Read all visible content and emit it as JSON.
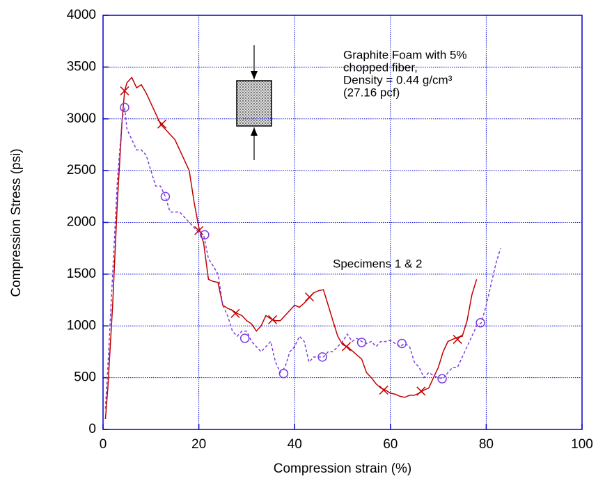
{
  "chart_data": {
    "type": "line",
    "x_label": "Compression strain (%)",
    "y_label": "Compression Stress (psi)",
    "xlim": [
      0,
      100
    ],
    "xticks": [
      0,
      20,
      40,
      60,
      80,
      100
    ],
    "ylim": [
      0,
      4000
    ],
    "yticks": [
      0,
      500,
      1000,
      1500,
      2000,
      2500,
      3000,
      3500,
      4000
    ],
    "grid": true,
    "annotations": [
      "Graphite Foam with 5%",
      "chopped fiber,",
      "Density = 0.44 g/cm³",
      "(27.16 pcf)",
      "Specimens 1 & 2"
    ],
    "series": [
      {
        "color": "#c00000",
        "dash": false,
        "x": [
          0.5,
          1,
          2,
          3,
          4,
          4.5,
          5,
          6,
          7,
          8,
          9,
          10,
          11,
          12,
          13,
          14,
          15,
          16,
          17,
          18,
          19,
          20,
          21,
          22,
          23,
          24,
          25,
          26,
          27,
          28,
          29,
          30,
          31,
          32,
          33,
          34,
          35,
          36,
          37,
          38,
          39,
          40,
          41,
          42,
          43,
          44,
          45,
          46,
          47,
          48,
          49,
          50,
          51,
          52,
          53,
          54,
          55,
          56,
          57,
          58,
          59,
          60,
          61,
          62,
          63,
          64,
          65,
          66,
          67,
          68,
          69,
          70,
          71,
          72,
          73,
          74,
          75,
          76,
          77,
          78
        ],
        "values": [
          100,
          400,
          1200,
          2200,
          3000,
          3270,
          3350,
          3400,
          3300,
          3330,
          3250,
          3150,
          3050,
          2950,
          2900,
          2850,
          2800,
          2700,
          2600,
          2500,
          2200,
          1950,
          1800,
          1450,
          1430,
          1420,
          1200,
          1170,
          1150,
          1120,
          1100,
          1050,
          1020,
          950,
          1000,
          1100,
          1070,
          1050,
          1050,
          1100,
          1150,
          1200,
          1180,
          1220,
          1270,
          1320,
          1340,
          1350,
          1200,
          1050,
          900,
          820,
          800,
          760,
          720,
          680,
          550,
          500,
          440,
          400,
          380,
          350,
          340,
          320,
          310,
          330,
          330,
          350,
          380,
          400,
          500,
          600,
          750,
          850,
          870,
          890,
          900,
          1050,
          1300,
          1450
        ]
      },
      {
        "color": "#7b3fe0",
        "dash": true,
        "x": [
          0.5,
          1,
          2,
          3,
          4,
          4.5,
          5,
          6,
          7,
          8,
          9,
          10,
          11,
          12,
          13,
          14,
          15,
          16,
          17,
          18,
          19,
          20,
          21,
          22,
          23,
          24,
          25,
          26,
          27,
          28,
          29,
          30,
          31,
          32,
          33,
          34,
          35,
          36,
          37,
          38,
          39,
          40,
          41,
          42,
          43,
          44,
          45,
          46,
          47,
          48,
          49,
          50,
          51,
          52,
          53,
          54,
          55,
          56,
          57,
          58,
          59,
          60,
          61,
          62,
          63,
          64,
          65,
          66,
          67,
          68,
          69,
          70,
          71,
          72,
          73,
          74,
          75,
          76,
          77,
          78,
          79,
          80,
          81,
          82,
          83
        ],
        "values": [
          200,
          600,
          1500,
          2400,
          3000,
          3110,
          2900,
          2800,
          2700,
          2700,
          2650,
          2500,
          2350,
          2350,
          2250,
          2100,
          2100,
          2100,
          2050,
          2000,
          1950,
          1900,
          1880,
          1650,
          1580,
          1500,
          1200,
          1100,
          950,
          900,
          950,
          950,
          850,
          800,
          750,
          800,
          850,
          650,
          550,
          600,
          750,
          800,
          900,
          850,
          650,
          700,
          700,
          700,
          750,
          750,
          800,
          850,
          920,
          850,
          880,
          850,
          830,
          850,
          800,
          850,
          850,
          860,
          830,
          800,
          830,
          800,
          650,
          600,
          500,
          550,
          520,
          500,
          490,
          550,
          600,
          600,
          700,
          800,
          900,
          1000,
          1030,
          1200,
          1400,
          1600,
          1750
        ]
      },
      {
        "color": "#c00000",
        "marker": "x",
        "x": [
          4.5,
          12.3,
          20,
          27.6,
          35.4,
          43.1,
          50.8,
          58.6,
          66.4,
          74
        ],
        "values": [
          3270,
          2950,
          1920,
          1120,
          1060,
          1280,
          800,
          380,
          370,
          870
        ]
      },
      {
        "color": "#7b3fe0",
        "marker": "circle",
        "x": [
          4.5,
          13,
          21.2,
          29.6,
          37.7,
          45.8,
          54,
          62.4,
          70.8,
          78.8
        ],
        "values": [
          3110,
          2250,
          1880,
          880,
          540,
          700,
          840,
          830,
          490,
          1030
        ]
      }
    ]
  }
}
